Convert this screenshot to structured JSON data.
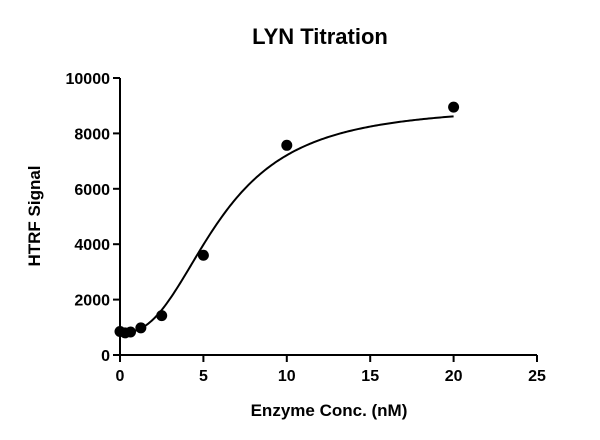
{
  "chart_data": {
    "type": "scatter",
    "title": "LYN Titration",
    "xlabel": "Enzyme Conc. (nM)",
    "ylabel": "HTRF Signal",
    "xlim": [
      0,
      25
    ],
    "ylim": [
      0,
      10000
    ],
    "xticks": [
      0,
      5,
      10,
      15,
      20,
      25
    ],
    "yticks": [
      0,
      2000,
      4000,
      6000,
      8000,
      10000
    ],
    "grid": false,
    "legend": "none",
    "series": [
      {
        "points": [
          {
            "x": 0,
            "y": 850
          },
          {
            "x": 0.31,
            "y": 800
          },
          {
            "x": 0.63,
            "y": 830
          },
          {
            "x": 1.25,
            "y": 980
          },
          {
            "x": 2.5,
            "y": 1420
          },
          {
            "x": 5,
            "y": 3600
          },
          {
            "x": 10,
            "y": 7570
          },
          {
            "x": 20,
            "y": 8950
          }
        ],
        "fit": {
          "model": "sigmoidal",
          "bottom": 800,
          "top": 9000,
          "ec50": 6.0,
          "hill": 2.5
        }
      }
    ]
  }
}
